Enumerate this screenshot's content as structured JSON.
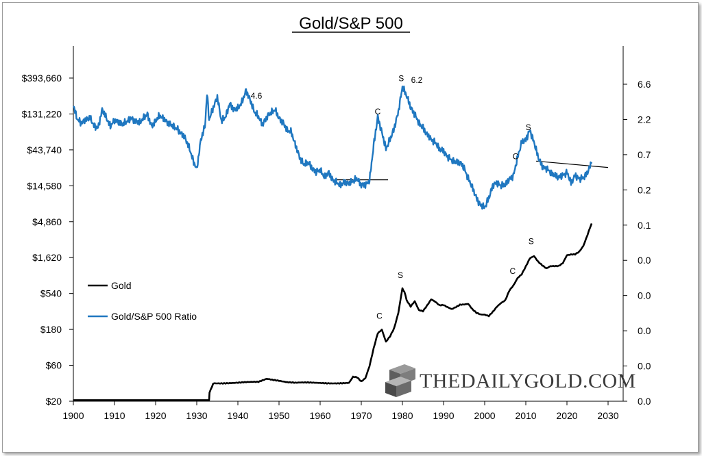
{
  "chart_data": {
    "type": "line",
    "title": "Gold/S&P 500",
    "x_ticks": [
      "1900",
      "1910",
      "1920",
      "1930",
      "1940",
      "1950",
      "1960",
      "1970",
      "1980",
      "1990",
      "2000",
      "2010",
      "2020",
      "2030"
    ],
    "xlim": [
      1900,
      2030
    ],
    "y_left_ticks": [
      "$393,660",
      "$131,220",
      "$43,740",
      "$14,580",
      "$4,860",
      "$1,620",
      "$540",
      "$180",
      "$60",
      "$20"
    ],
    "y_left_scale": "log",
    "y_left_range": [
      20,
      393660
    ],
    "y_right_ticks": [
      "6.6",
      "2.2",
      "0.7",
      "0.2",
      "0.1",
      "0.0",
      "0.0",
      "0.0",
      "0.0",
      "0.0"
    ],
    "legend_position": "left-middle",
    "grid": false,
    "colors": {
      "gold": "#000000",
      "ratio": "#1f77c0"
    },
    "series": [
      {
        "name": "Gold",
        "color": "#000000",
        "points": [
          [
            1900,
            20.67
          ],
          [
            1933,
            20.67
          ],
          [
            1933.1,
            26
          ],
          [
            1934,
            35
          ],
          [
            1940,
            35
          ],
          [
            1945,
            36
          ],
          [
            1947,
            40
          ],
          [
            1950,
            38
          ],
          [
            1952,
            36
          ],
          [
            1954,
            35
          ],
          [
            1960,
            35
          ],
          [
            1967,
            35
          ],
          [
            1968,
            42
          ],
          [
            1969,
            41
          ],
          [
            1970,
            36
          ],
          [
            1971,
            40
          ],
          [
            1972,
            58
          ],
          [
            1973,
            100
          ],
          [
            1974,
            160
          ],
          [
            1975,
            180
          ],
          [
            1976,
            125
          ],
          [
            1977,
            148
          ],
          [
            1978,
            190
          ],
          [
            1979,
            300
          ],
          [
            1980,
            640
          ],
          [
            1980.5,
            560
          ],
          [
            1981,
            440
          ],
          [
            1982,
            360
          ],
          [
            1983,
            420
          ],
          [
            1984,
            320
          ],
          [
            1985,
            310
          ],
          [
            1986,
            370
          ],
          [
            1987,
            450
          ],
          [
            1988,
            420
          ],
          [
            1989,
            380
          ],
          [
            1990,
            385
          ],
          [
            1991,
            360
          ],
          [
            1992,
            340
          ],
          [
            1993,
            360
          ],
          [
            1994,
            385
          ],
          [
            1995,
            385
          ],
          [
            1996,
            390
          ],
          [
            1997,
            330
          ],
          [
            1998,
            295
          ],
          [
            1999,
            280
          ],
          [
            2000,
            280
          ],
          [
            2001,
            270
          ],
          [
            2002,
            310
          ],
          [
            2003,
            365
          ],
          [
            2004,
            410
          ],
          [
            2005,
            445
          ],
          [
            2006,
            600
          ],
          [
            2007,
            700
          ],
          [
            2008,
            870
          ],
          [
            2009,
            970
          ],
          [
            2010,
            1225
          ],
          [
            2011,
            1570
          ],
          [
            2012,
            1670
          ],
          [
            2013,
            1410
          ],
          [
            2014,
            1265
          ],
          [
            2015,
            1160
          ],
          [
            2016,
            1250
          ],
          [
            2017,
            1260
          ],
          [
            2018,
            1270
          ],
          [
            2019,
            1390
          ],
          [
            2020,
            1770
          ],
          [
            2021,
            1800
          ],
          [
            2022,
            1800
          ],
          [
            2023,
            1940
          ],
          [
            2024,
            2300
          ],
          [
            2025,
            3200
          ],
          [
            2026,
            4600
          ]
        ]
      },
      {
        "name": "Gold/S&P 500 Ratio",
        "color": "#1f77c0",
        "points": [
          [
            1900,
            170000
          ],
          [
            1901,
            110000
          ],
          [
            1902,
            100000
          ],
          [
            1904,
            118000
          ],
          [
            1905,
            92000
          ],
          [
            1906,
            85000
          ],
          [
            1907,
            150000
          ],
          [
            1909,
            90000
          ],
          [
            1910,
            110000
          ],
          [
            1912,
            95000
          ],
          [
            1914,
            115000
          ],
          [
            1916,
            100000
          ],
          [
            1918,
            130000
          ],
          [
            1919,
            90000
          ],
          [
            1921,
            125000
          ],
          [
            1923,
            100000
          ],
          [
            1925,
            85000
          ],
          [
            1927,
            65000
          ],
          [
            1928,
            50000
          ],
          [
            1929,
            33000
          ],
          [
            1930,
            24000
          ],
          [
            1931,
            60000
          ],
          [
            1932,
            90000
          ],
          [
            1932.5,
            250000
          ],
          [
            1933,
            110000
          ],
          [
            1934,
            160000
          ],
          [
            1935,
            220000
          ],
          [
            1936,
            105000
          ],
          [
            1937,
            120000
          ],
          [
            1938,
            180000
          ],
          [
            1939,
            150000
          ],
          [
            1940,
            155000
          ],
          [
            1941,
            190000
          ],
          [
            1942,
            270000
          ],
          [
            1943,
            200000
          ],
          [
            1944,
            140000
          ],
          [
            1945,
            120000
          ],
          [
            1946,
            95000
          ],
          [
            1947,
            120000
          ],
          [
            1948,
            135000
          ],
          [
            1949,
            150000
          ],
          [
            1950,
            115000
          ],
          [
            1951,
            100000
          ],
          [
            1952,
            80000
          ],
          [
            1953,
            75000
          ],
          [
            1954,
            50000
          ],
          [
            1955,
            35000
          ],
          [
            1956,
            28000
          ],
          [
            1957,
            30000
          ],
          [
            1958,
            25000
          ],
          [
            1959,
            22000
          ],
          [
            1960,
            24000
          ],
          [
            1961,
            19000
          ],
          [
            1962,
            22000
          ],
          [
            1963,
            17500
          ],
          [
            1964,
            16000
          ],
          [
            1965,
            15000
          ],
          [
            1966,
            16500
          ],
          [
            1967,
            15500
          ],
          [
            1968,
            17000
          ],
          [
            1969,
            18000
          ],
          [
            1970,
            15000
          ],
          [
            1971,
            15000
          ],
          [
            1972,
            17000
          ],
          [
            1973,
            50000
          ],
          [
            1974,
            120000
          ],
          [
            1975,
            75000
          ],
          [
            1976,
            45000
          ],
          [
            1977,
            60000
          ],
          [
            1978,
            85000
          ],
          [
            1979,
            140000
          ],
          [
            1980,
            300000
          ],
          [
            1981,
            230000
          ],
          [
            1982,
            160000
          ],
          [
            1983,
            130000
          ],
          [
            1984,
            100000
          ],
          [
            1985,
            85000
          ],
          [
            1986,
            70000
          ],
          [
            1987,
            60000
          ],
          [
            1988,
            55000
          ],
          [
            1989,
            45000
          ],
          [
            1990,
            42000
          ],
          [
            1991,
            35000
          ],
          [
            1992,
            32000
          ],
          [
            1993,
            30000
          ],
          [
            1994,
            30000
          ],
          [
            1995,
            25000
          ],
          [
            1996,
            18000
          ],
          [
            1997,
            14000
          ],
          [
            1998,
            10000
          ],
          [
            1999,
            8000
          ],
          [
            2000,
            7500
          ],
          [
            2001,
            10000
          ],
          [
            2002,
            15000
          ],
          [
            2003,
            16000
          ],
          [
            2004,
            14500
          ],
          [
            2005,
            15000
          ],
          [
            2006,
            18000
          ],
          [
            2007,
            20000
          ],
          [
            2008,
            35000
          ],
          [
            2009,
            55000
          ],
          [
            2010,
            60000
          ],
          [
            2011,
            80000
          ],
          [
            2012,
            55000
          ],
          [
            2013,
            35000
          ],
          [
            2014,
            26000
          ],
          [
            2015,
            25000
          ],
          [
            2016,
            22000
          ],
          [
            2017,
            20000
          ],
          [
            2018,
            19000
          ],
          [
            2019,
            20000
          ],
          [
            2020,
            22000
          ],
          [
            2021,
            16000
          ],
          [
            2022,
            20000
          ],
          [
            2023,
            18000
          ],
          [
            2024,
            18500
          ],
          [
            2025,
            22000
          ],
          [
            2026,
            30000
          ]
        ]
      }
    ],
    "annotations": [
      {
        "text": "4.6",
        "x": 1944.5,
        "y": 210000
      },
      {
        "text": "C",
        "x": 1974.0,
        "y": 130000
      },
      {
        "text": "S",
        "x": 1979.7,
        "y": 360000
      },
      {
        "text": "6.2",
        "x": 1983.5,
        "y": 340000
      },
      {
        "text": "S",
        "x": 2010.6,
        "y": 80000
      },
      {
        "text": "C",
        "x": 2007.5,
        "y": 33000
      },
      {
        "text": "C",
        "x": 1974.4,
        "y": 250
      },
      {
        "text": "S",
        "x": 1979.5,
        "y": 870
      },
      {
        "text": "C",
        "x": 2006.8,
        "y": 980
      },
      {
        "text": "S",
        "x": 2011.3,
        "y": 2450
      }
    ],
    "trendlines": [
      {
        "points": [
          [
            1963.5,
            17500
          ],
          [
            1976.5,
            17500
          ]
        ]
      },
      {
        "points": [
          [
            2012.5,
            31000
          ],
          [
            2030,
            25500
          ]
        ]
      }
    ]
  },
  "watermark": "THEDAILYGOLD.COM"
}
